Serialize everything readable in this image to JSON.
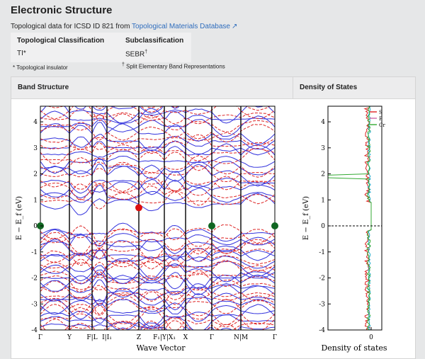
{
  "page": {
    "title": "Electronic Structure",
    "info_prefix": "Topological data for ICSD ID 821 from ",
    "info_link": "Topological Materials Database",
    "link_icon": "external-link-icon"
  },
  "classification": {
    "headers": [
      "Topological Classification",
      "Subclassification"
    ],
    "values": [
      "TI*",
      "SEBR"
    ],
    "dagger": "†",
    "note_star": "* Topological insulator",
    "note_dagger_symbol": "†",
    "note_dagger": " Split Elementary Band Representations"
  },
  "panels": {
    "band_title": "Band Structure",
    "dos_title": "Density of States"
  },
  "chart_data": [
    {
      "type": "line",
      "title": "",
      "xlabel": "Wave Vector",
      "ylabel": "E − E_f (eV)",
      "ylim": [
        -4,
        4.6
      ],
      "yticks": [
        -4,
        -3,
        -2,
        -1,
        0,
        1,
        2,
        3,
        4
      ],
      "kpoint_labels": [
        "Γ",
        "Y",
        "F|L",
        "I|I₁",
        "Z",
        "F₁|Y|X₁",
        "X",
        "Γ",
        "N|M",
        "Γ"
      ],
      "fermi_level": 0,
      "series": [
        {
          "name": "",
          "color": "#3333dd",
          "style": "solid"
        },
        {
          "name": "",
          "color": "#dd2222",
          "style": "dashed"
        }
      ],
      "markers": [
        {
          "color": "#dd1111",
          "k": "Z",
          "y": 0.7
        },
        {
          "color": "#116622",
          "k": "Γ",
          "y": 0
        },
        {
          "color": "#116622",
          "k": "Γ",
          "y": 0
        },
        {
          "color": "#116622",
          "k": "Γ",
          "y": 0
        }
      ]
    },
    {
      "type": "line",
      "title": "",
      "xlabel": "Density of states",
      "ylabel": "E − E_f (eV)",
      "ylim": [
        -4,
        4.6
      ],
      "xticks": [
        0
      ],
      "legend_position": "top-right",
      "legend": [
        {
          "name": "S",
          "color": "#dd2222"
        },
        {
          "name": "P",
          "color": "#cc66aa"
        },
        {
          "name": "Cr",
          "color": "#33aa33"
        }
      ],
      "extra_series_color": "#22aacc"
    }
  ]
}
